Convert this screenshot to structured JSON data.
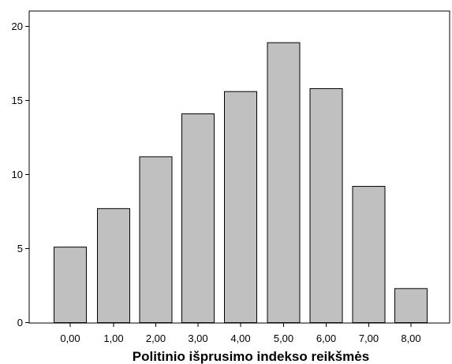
{
  "chart_data": {
    "type": "bar",
    "title": "",
    "xlabel": "Politinio išprusimo indekso reikšmės",
    "ylabel": "",
    "categories": [
      "0,00",
      "1,00",
      "2,00",
      "3,00",
      "4,00",
      "5,00",
      "6,00",
      "7,00",
      "8,00"
    ],
    "values": [
      5.1,
      7.7,
      11.2,
      14.1,
      15.6,
      18.9,
      15.8,
      9.2,
      2.3
    ],
    "yticks": [
      "0",
      "5",
      "10",
      "15",
      "20"
    ],
    "ylim": [
      0,
      20
    ],
    "grid": false,
    "legend": "none",
    "colors": {
      "bar_fill": "#c0c0c0",
      "bar_stroke": "#000000",
      "axis": "#000000",
      "background": "#ffffff"
    }
  }
}
